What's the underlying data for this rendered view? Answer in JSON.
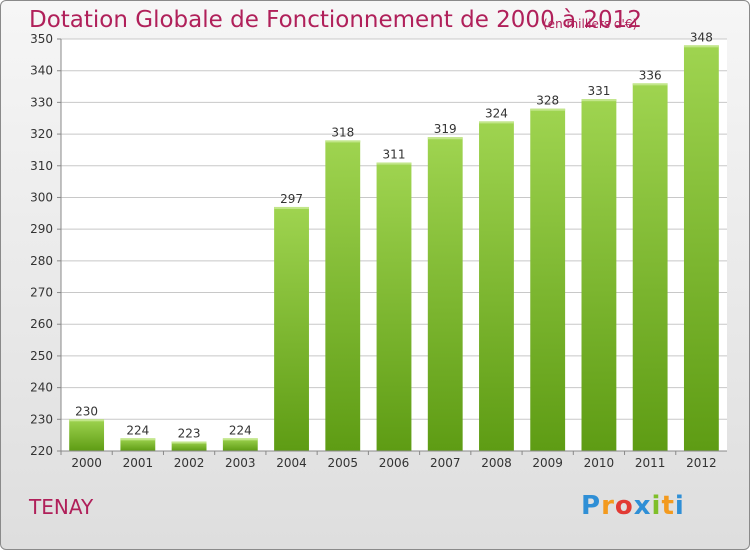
{
  "title": "Dotation Globale de Fonctionnement de 2000 à 2012",
  "unit": "(en milliers d'€)",
  "commune": "TENAY",
  "logo": "Proxiti",
  "colors": {
    "title": "#b0205a",
    "bar_top": "#9fd450",
    "bar_bottom": "#5e9c14",
    "grid": "#c8c8c8"
  },
  "chart_data": {
    "type": "bar",
    "title": "Dotation Globale de Fonctionnement de 2000 à 2012",
    "subtitle": "(en milliers d'€)",
    "xlabel": "",
    "ylabel": "",
    "categories": [
      "2000",
      "2001",
      "2002",
      "2003",
      "2004",
      "2005",
      "2006",
      "2007",
      "2008",
      "2009",
      "2010",
      "2011",
      "2012"
    ],
    "values": [
      230,
      224,
      223,
      224,
      297,
      318,
      311,
      319,
      324,
      328,
      331,
      336,
      348
    ],
    "ylim": [
      220,
      350
    ],
    "yticks": [
      220,
      230,
      240,
      250,
      260,
      270,
      280,
      290,
      300,
      310,
      320,
      330,
      340,
      350
    ],
    "grid": true,
    "legend": "none"
  }
}
